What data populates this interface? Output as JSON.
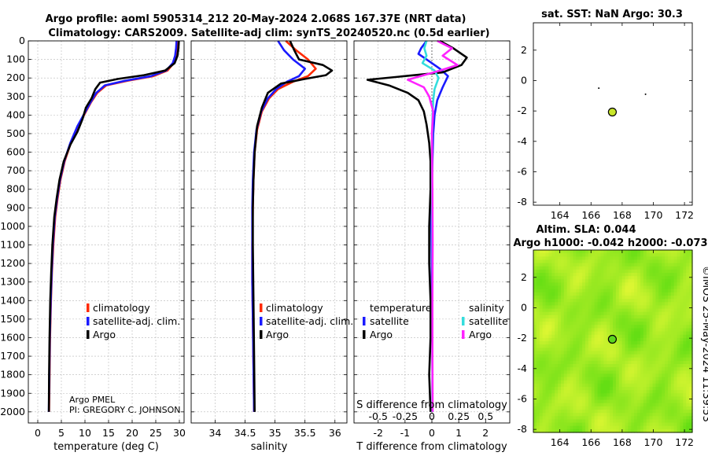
{
  "title": {
    "line1": "Argo profile: aoml 5905314_212 20-May-2024 2.068S 167.37E (NRT data)",
    "line2": "Climatology: CARS2009. Satellite-adj clim: synTS_20240520.nc (0.5d earlier)"
  },
  "credits": {
    "lab": "Argo PMEL",
    "pi": "PI: GREGORY C. JOHNSON"
  },
  "watermark": "©IMOS 25-May-2024 11:39:53",
  "colors": {
    "climatology": "#ff2a00",
    "satellite": "#1a1aff",
    "argo": "#000000",
    "sal_satellite": "#33dddd",
    "sal_argo": "#ff22ff",
    "field": "#7fe81a"
  },
  "chart_data": [
    {
      "id": "temperature-panel",
      "type": "line",
      "xlabel": "temperature (deg C)",
      "xlim": [
        -2,
        31
      ],
      "ylim": [
        2060,
        0
      ],
      "xticks": [
        0,
        5,
        10,
        15,
        20,
        25,
        30
      ],
      "yticks": [
        0,
        100,
        200,
        300,
        400,
        500,
        600,
        700,
        800,
        900,
        1000,
        1100,
        1200,
        1300,
        1400,
        1500,
        1600,
        1700,
        1800,
        1900,
        2000
      ],
      "legend": [
        "climatology",
        "satellite-adj. clim.",
        "Argo"
      ],
      "series": [
        {
          "name": "climatology",
          "color": "#ff2a00",
          "x": [
            29.6,
            29.5,
            29.3,
            28.8,
            27.5,
            24.5,
            19,
            14.5,
            12.6,
            11.3,
            9.8,
            8.5,
            7,
            5.7,
            4.8,
            4.2,
            3.7,
            3.3,
            3.0,
            2.8,
            2.6,
            2.5,
            2.4
          ],
          "y": [
            0,
            40,
            80,
            120,
            160,
            190,
            215,
            240,
            280,
            330,
            400,
            460,
            550,
            650,
            750,
            850,
            950,
            1100,
            1250,
            1400,
            1600,
            1800,
            2000
          ]
        },
        {
          "name": "satellite-adj. clim.",
          "color": "#1a1aff",
          "x": [
            29.4,
            29.3,
            29.1,
            28.6,
            27.2,
            24,
            18.5,
            14.2,
            12.4,
            11.2,
            9.7,
            8.4,
            6.9,
            5.6,
            4.7,
            4.1,
            3.6,
            3.2,
            2.95,
            2.75,
            2.55,
            2.45,
            2.35
          ],
          "y": [
            0,
            40,
            80,
            120,
            160,
            190,
            215,
            240,
            280,
            330,
            400,
            460,
            550,
            650,
            750,
            850,
            950,
            1100,
            1250,
            1400,
            1600,
            1800,
            2000
          ]
        },
        {
          "name": "Argo",
          "color": "#000000",
          "x": [
            29.9,
            29.8,
            29.6,
            29.0,
            27.0,
            22.5,
            17,
            13.2,
            12.2,
            11.4,
            10.2,
            9.5,
            8.4,
            6.9,
            5.5,
            4.6,
            4.0,
            3.5,
            3.1,
            2.85,
            2.65,
            2.5,
            2.4,
            2.35
          ],
          "y": [
            0,
            40,
            80,
            120,
            160,
            185,
            205,
            225,
            260,
            310,
            360,
            420,
            490,
            560,
            650,
            750,
            850,
            950,
            1100,
            1250,
            1400,
            1600,
            1800,
            2000
          ]
        }
      ]
    },
    {
      "id": "salinity-panel",
      "type": "line",
      "xlabel": "salinity",
      "xlim": [
        33.6,
        36.2
      ],
      "ylim": [
        2060,
        0
      ],
      "xticks": [
        34,
        34.5,
        35,
        35.5,
        36
      ],
      "legend": [
        "climatology",
        "satellite-adj. clim.",
        "Argo"
      ],
      "series": [
        {
          "name": "climatology",
          "color": "#ff2a00",
          "x": [
            35.18,
            35.35,
            35.55,
            35.68,
            35.55,
            35.3,
            35.05,
            34.9,
            34.78,
            34.7,
            34.66,
            34.64,
            34.63,
            34.62,
            34.62,
            34.63,
            34.64,
            34.65
          ],
          "y": [
            0,
            50,
            100,
            150,
            190,
            220,
            260,
            310,
            380,
            480,
            600,
            750,
            900,
            1100,
            1300,
            1500,
            1750,
            2000
          ]
        },
        {
          "name": "satellite-adj. clim.",
          "color": "#1a1aff",
          "x": [
            35.05,
            35.15,
            35.3,
            35.5,
            35.4,
            35.2,
            35.02,
            34.88,
            34.77,
            34.69,
            34.65,
            34.63,
            34.62,
            34.62,
            34.62,
            34.63,
            34.64,
            34.65
          ],
          "y": [
            0,
            50,
            100,
            150,
            190,
            220,
            260,
            310,
            380,
            480,
            600,
            750,
            900,
            1100,
            1300,
            1500,
            1750,
            2000
          ]
        },
        {
          "name": "Argo",
          "color": "#000000",
          "x": [
            35.25,
            35.32,
            35.4,
            35.8,
            35.95,
            35.85,
            35.5,
            35.1,
            34.88,
            34.78,
            34.7,
            34.66,
            34.64,
            34.63,
            34.63,
            34.64,
            34.65,
            34.66
          ],
          "y": [
            0,
            50,
            100,
            130,
            160,
            185,
            205,
            230,
            280,
            360,
            460,
            600,
            750,
            900,
            1100,
            1400,
            1700,
            2000
          ]
        }
      ]
    },
    {
      "id": "difference-panel",
      "type": "line",
      "xlabel": "T difference from climatology",
      "xlabel_top": "S difference from climatology",
      "xlim": [
        -2.9,
        2.9
      ],
      "ylim": [
        2060,
        0
      ],
      "xticks": [
        -2,
        -1,
        0,
        1,
        2
      ],
      "xtick_labels": [
        "-2",
        "-1",
        "0",
        "1",
        "2"
      ],
      "xticks_top": [
        "-0.5",
        "-0.25",
        "0",
        "0.25",
        "0.5"
      ],
      "legend_headers": [
        "temperature",
        "salinity"
      ],
      "legend": [
        "satellite",
        "Argo",
        "satellite",
        "Argo"
      ],
      "series": [
        {
          "name": "T satellite",
          "color": "#1a1aff",
          "x": [
            -0.2,
            -0.4,
            -0.5,
            -0.2,
            0.3,
            0.6,
            0.4,
            0.2,
            0.1,
            0.05,
            0.02,
            0,
            -0.02,
            0,
            0.02,
            0.02,
            0.02
          ],
          "y": [
            0,
            40,
            70,
            100,
            150,
            190,
            250,
            320,
            400,
            500,
            650,
            800,
            1000,
            1300,
            1600,
            1800,
            2000
          ]
        },
        {
          "name": "T Argo",
          "color": "#000000",
          "x": [
            0.3,
            0.8,
            1.3,
            1.1,
            0.4,
            -2.4,
            -1.6,
            -0.9,
            -0.5,
            -0.3,
            -0.2,
            -0.1,
            -0.05,
            -0.05,
            -0.1,
            -0.1,
            -0.05,
            -0.05,
            -0.1,
            -0.05
          ],
          "y": [
            0,
            40,
            90,
            130,
            170,
            210,
            240,
            280,
            320,
            380,
            450,
            550,
            650,
            800,
            1000,
            1200,
            1400,
            1600,
            1800,
            2000
          ]
        },
        {
          "name": "S satellite",
          "color": "#33dddd",
          "x": [
            -0.2,
            -0.28,
            -0.2,
            -0.35,
            0.1,
            0.25,
            0.1,
            0.05,
            0.02,
            0,
            0.01,
            0.02,
            0.02,
            0.02,
            0.02
          ],
          "y": [
            0,
            40,
            80,
            120,
            160,
            200,
            260,
            320,
            420,
            600,
            900,
            1200,
            1500,
            1800,
            2000
          ]
        },
        {
          "name": "S Argo",
          "color": "#ff22ff",
          "x": [
            0.2,
            0.75,
            0.4,
            0.95,
            0.3,
            -0.9,
            -0.3,
            -0.1,
            0.05,
            0.0,
            0.02,
            0.03,
            0.02,
            0.02,
            0.03
          ],
          "y": [
            0,
            40,
            80,
            130,
            160,
            210,
            250,
            300,
            380,
            500,
            800,
            1100,
            1400,
            1700,
            2000
          ]
        }
      ]
    },
    {
      "id": "sst-map",
      "type": "scatter",
      "title": "sat. SST: NaN Argo: 30.3",
      "xlim": [
        162.3,
        172.5
      ],
      "ylim": [
        -8.2,
        3.8
      ],
      "xticks": [
        164,
        166,
        168,
        170,
        172
      ],
      "yticks": [
        2,
        0,
        -2,
        -4,
        -6,
        -8
      ],
      "points": [
        {
          "label": "Argo",
          "x": 167.37,
          "y": -2.07
        },
        {
          "label": "dot1",
          "x": 166.5,
          "y": -0.5
        },
        {
          "label": "dot2",
          "x": 169.5,
          "y": -0.9
        }
      ]
    },
    {
      "id": "sla-map",
      "type": "heatmap",
      "title": "Altim. SLA: 0.044",
      "subtitle": "Argo h1000: -0.042 h2000: -0.073",
      "xlim": [
        162.3,
        172.5
      ],
      "ylim": [
        -8.2,
        3.8
      ],
      "xticks": [
        164,
        166,
        168,
        170,
        172
      ],
      "yticks": [
        2,
        0,
        -2,
        -4,
        -6,
        -8
      ],
      "points": [
        {
          "label": "Argo",
          "x": 167.37,
          "y": -2.07
        }
      ]
    }
  ]
}
